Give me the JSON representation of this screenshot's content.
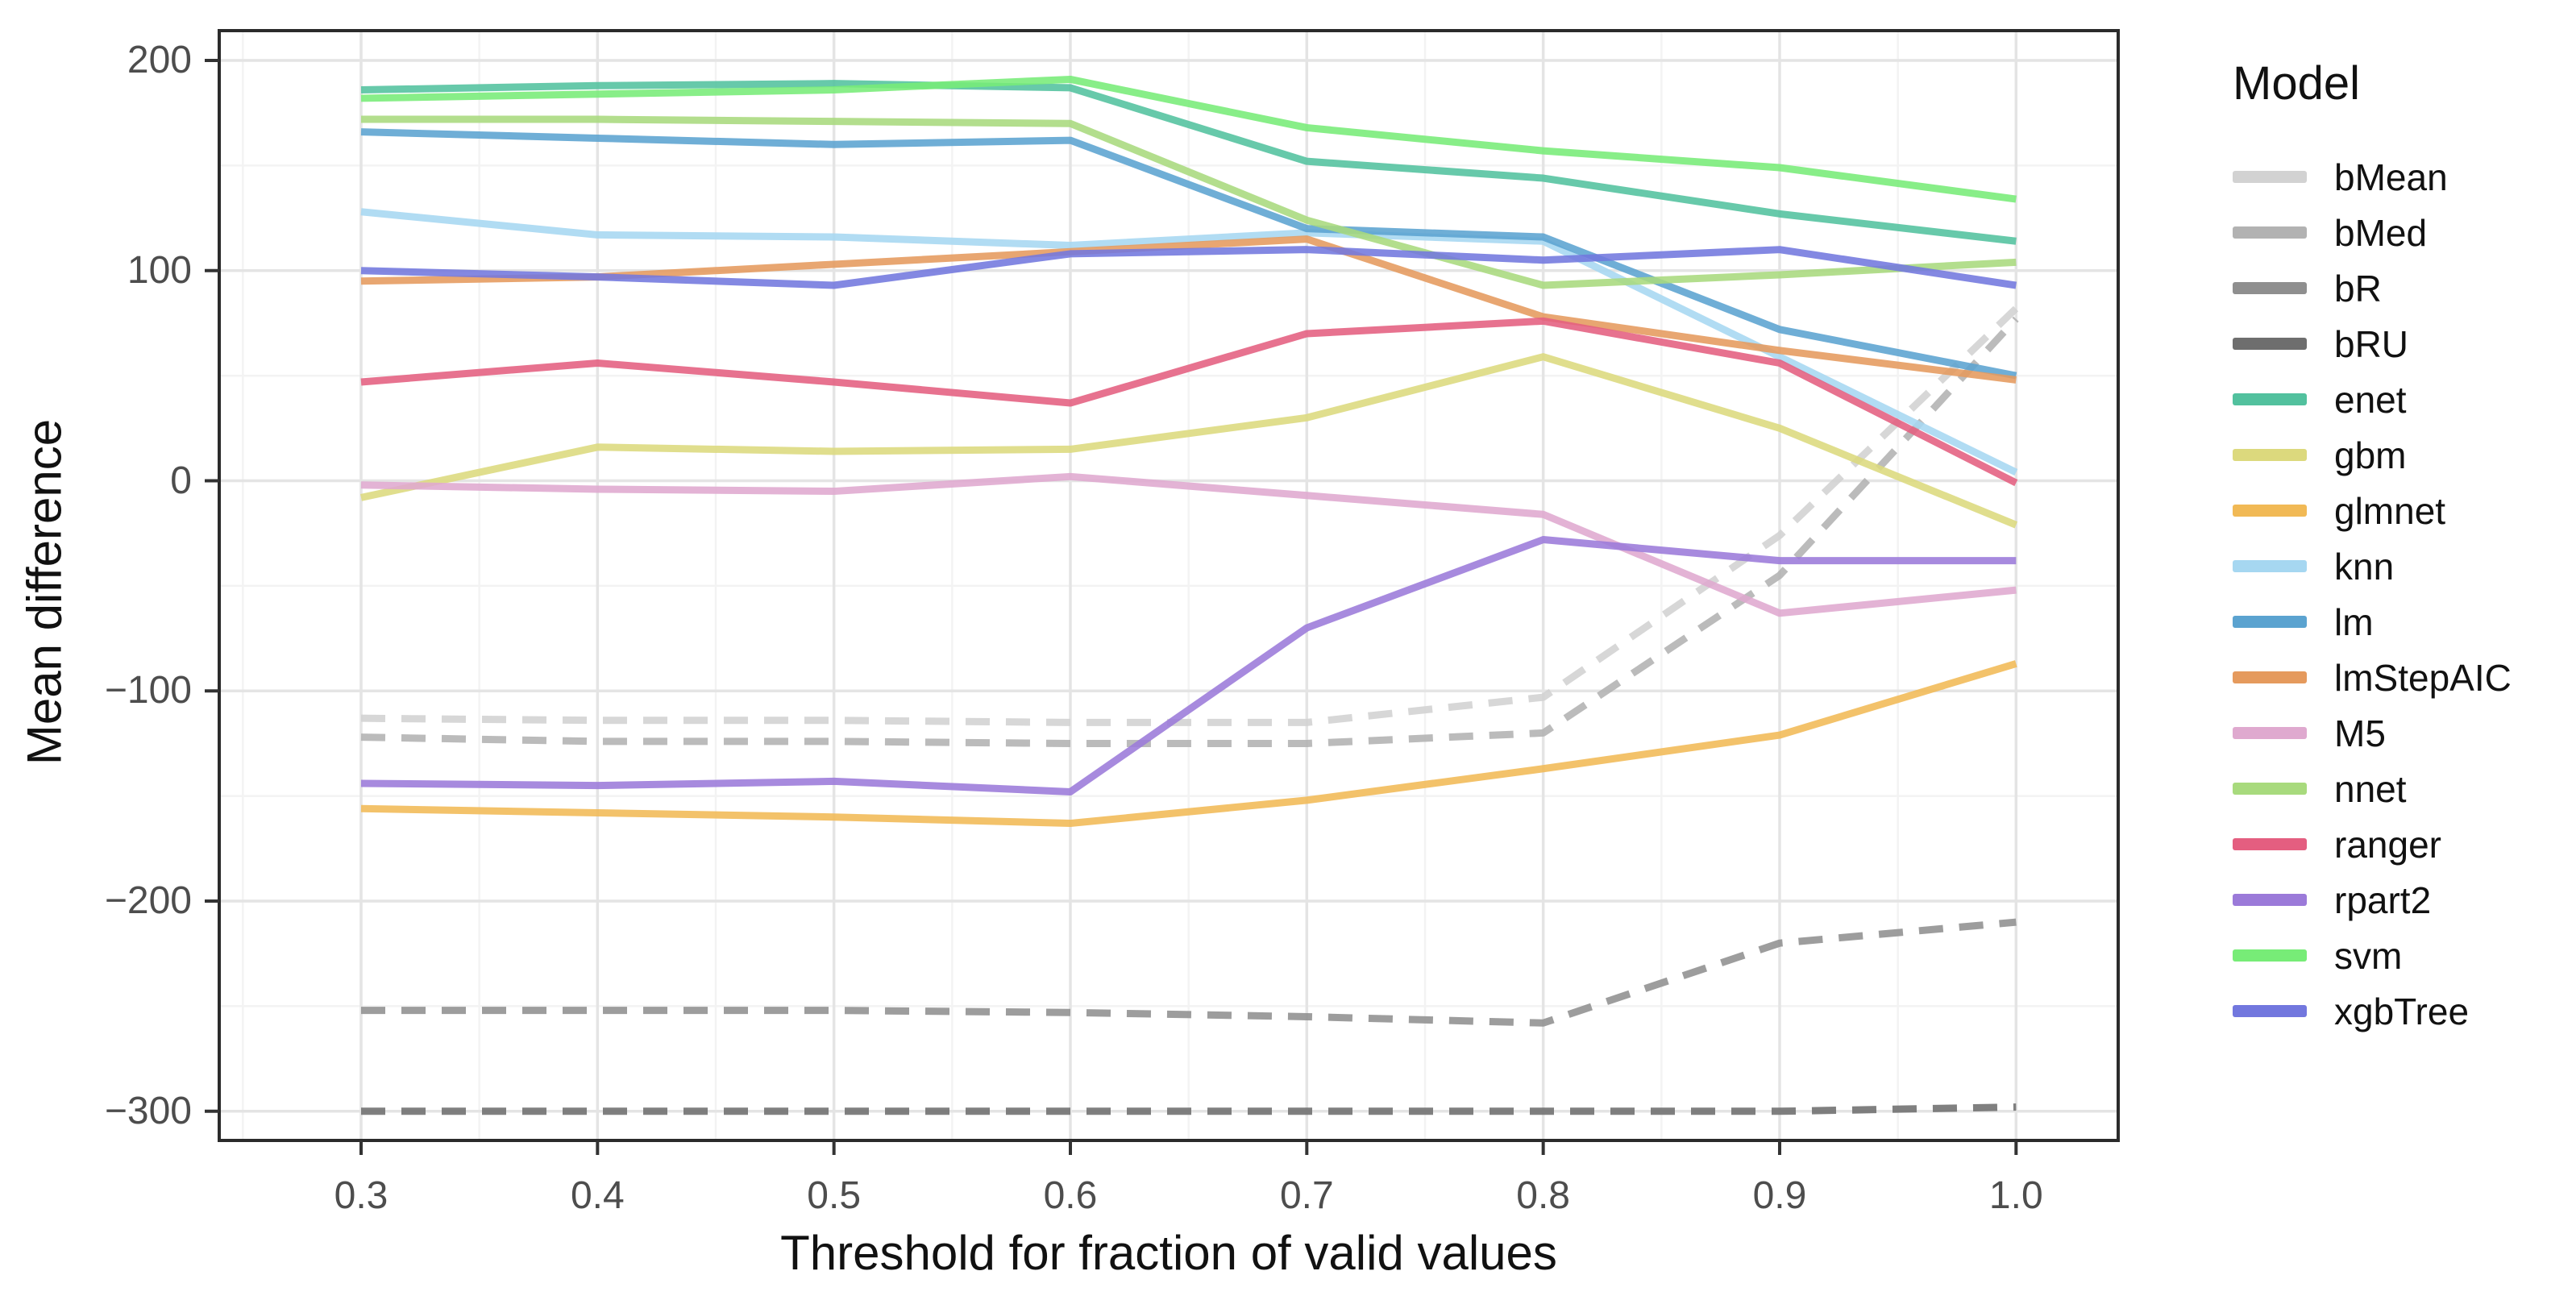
{
  "chart_data": {
    "type": "line",
    "xlabel": "Threshold for fraction of valid values",
    "ylabel": "Mean difference",
    "legend_title": "Model",
    "legend_position": "right",
    "grid": "major+minor",
    "x": [
      0.3,
      0.4,
      0.5,
      0.6,
      0.7,
      0.8,
      0.9,
      1.0
    ],
    "x_tick_labels": [
      "0.3",
      "0.4",
      "0.5",
      "0.6",
      "0.7",
      "0.8",
      "0.9",
      "1.0"
    ],
    "y_ticks": [
      200,
      100,
      0,
      -100,
      -200,
      -300
    ],
    "y_tick_labels": [
      "200",
      "100",
      "0",
      "−100",
      "−200",
      "−300"
    ],
    "y_minor_ticks": [
      150,
      50,
      -50,
      -150,
      -250
    ],
    "x_minor_ticks": [
      0.25,
      0.35,
      0.45,
      0.55,
      0.65,
      0.75,
      0.85,
      0.95
    ],
    "xlim": [
      0.24,
      1.043
    ],
    "ylim": [
      -314,
      214
    ],
    "series": [
      {
        "name": "bMean",
        "color": "#d2d2d2",
        "dashed": true,
        "values": [
          -113,
          -114,
          -114,
          -115,
          -115,
          -103,
          -26,
          82
        ]
      },
      {
        "name": "bMed",
        "color": "#b2b2b2",
        "dashed": true,
        "values": [
          -122,
          -124,
          -124,
          -125,
          -125,
          -120,
          -45,
          77
        ]
      },
      {
        "name": "bR",
        "color": "#8f8f8f",
        "dashed": true,
        "values": [
          -252,
          -252,
          -252,
          -253,
          -255,
          -258,
          -220,
          -210
        ]
      },
      {
        "name": "bRU",
        "color": "#6e6e6e",
        "dashed": true,
        "values": [
          -300,
          -300,
          -300,
          -300,
          -300,
          -300,
          -300,
          -298
        ]
      },
      {
        "name": "enet",
        "color": "#52c19e",
        "dashed": false,
        "values": [
          186,
          188,
          189,
          187,
          152,
          144,
          127,
          114
        ]
      },
      {
        "name": "gbm",
        "color": "#dcd97d",
        "dashed": false,
        "values": [
          -8,
          16,
          14,
          15,
          30,
          59,
          25,
          -21
        ]
      },
      {
        "name": "glmnet",
        "color": "#f1b955",
        "dashed": false,
        "values": [
          -156,
          -158,
          -160,
          -163,
          -152,
          -137,
          -121,
          -87
        ]
      },
      {
        "name": "knn",
        "color": "#a6d7f1",
        "dashed": false,
        "values": [
          128,
          117,
          116,
          112,
          118,
          114,
          59,
          4
        ]
      },
      {
        "name": "lm",
        "color": "#5ba3d0",
        "dashed": false,
        "values": [
          166,
          163,
          160,
          162,
          120,
          116,
          72,
          50
        ]
      },
      {
        "name": "lmStepAIC",
        "color": "#e59a5d",
        "dashed": false,
        "values": [
          95,
          97,
          103,
          109,
          115,
          78,
          62,
          48
        ]
      },
      {
        "name": "M5",
        "color": "#dfa9cf",
        "dashed": false,
        "values": [
          -2,
          -4,
          -5,
          2,
          -7,
          -16,
          -63,
          -52
        ]
      },
      {
        "name": "nnet",
        "color": "#a8da7d",
        "dashed": false,
        "values": [
          172,
          172,
          171,
          170,
          124,
          93,
          98,
          104
        ]
      },
      {
        "name": "ranger",
        "color": "#e45e80",
        "dashed": false,
        "values": [
          47,
          56,
          47,
          37,
          70,
          76,
          56,
          -1
        ]
      },
      {
        "name": "rpart2",
        "color": "#9b7ad9",
        "dashed": false,
        "values": [
          -144,
          -145,
          -143,
          -148,
          -70,
          -28,
          -38,
          -38
        ]
      },
      {
        "name": "svm",
        "color": "#77ec77",
        "dashed": false,
        "values": [
          182,
          184,
          186,
          191,
          168,
          157,
          149,
          134
        ]
      },
      {
        "name": "xgbTree",
        "color": "#7277de",
        "dashed": false,
        "values": [
          100,
          97,
          93,
          108,
          110,
          105,
          110,
          93
        ]
      }
    ],
    "style": {
      "panel_border_color": "#2b2b2b",
      "major_grid_color": "#e4e4e4",
      "minor_grid_color": "#f3f3f3",
      "tick_mark_color": "#333333",
      "tick_text_color": "#4d4d4d",
      "line_width": 9
    }
  }
}
